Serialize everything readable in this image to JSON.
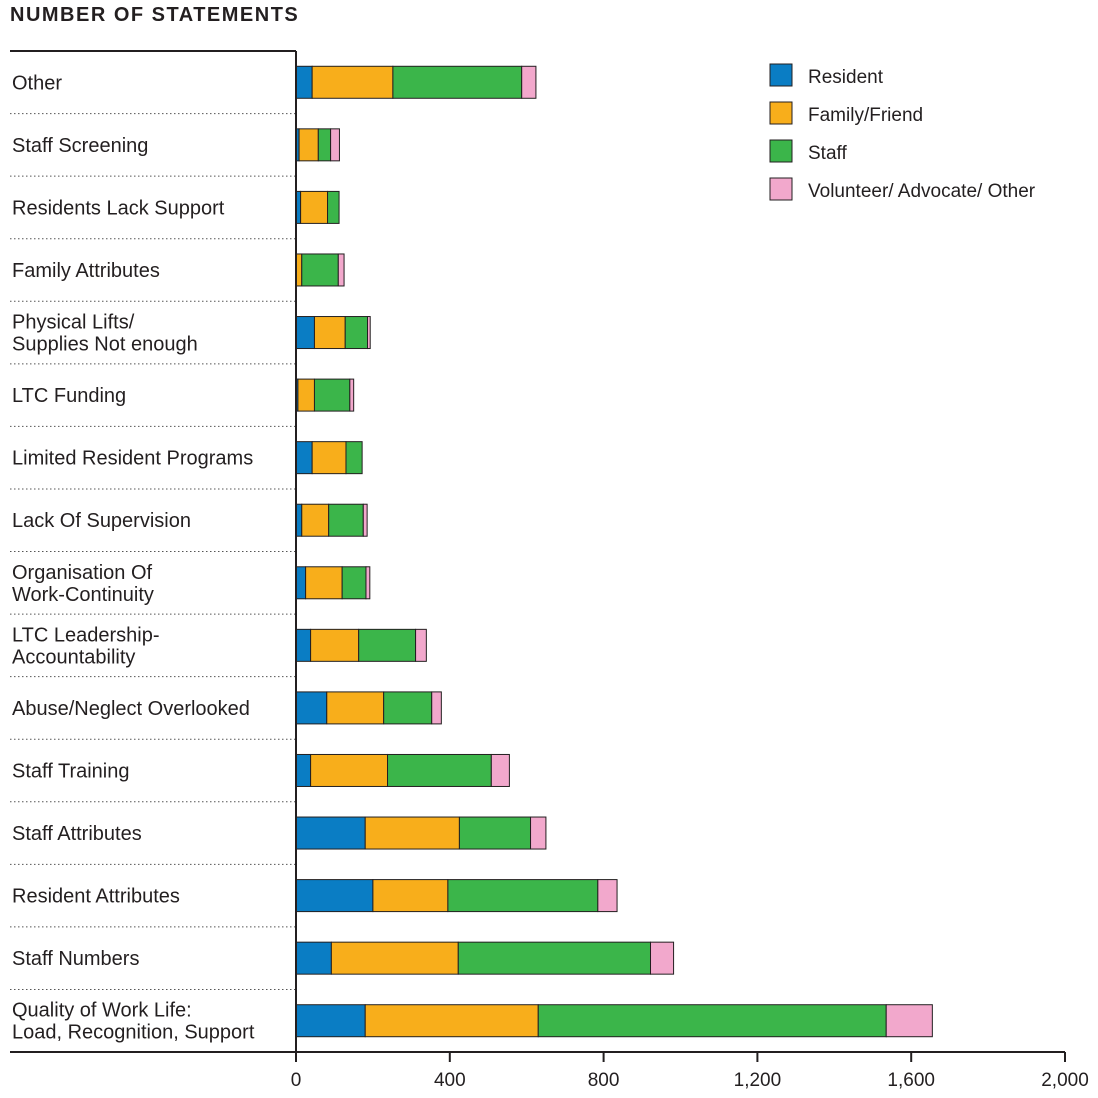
{
  "chart_data": {
    "type": "bar",
    "orientation": "horizontal",
    "stacked": true,
    "title": "NUMBER OF STATEMENTS",
    "categories": [
      [
        "Other"
      ],
      [
        "Staff Screening"
      ],
      [
        "Residents Lack Support"
      ],
      [
        "Family Attributes"
      ],
      [
        "Physical Lifts/",
        "Supplies Not enough"
      ],
      [
        "LTC Funding"
      ],
      [
        "Limited Resident Programs"
      ],
      [
        "Lack Of Supervision"
      ],
      [
        "Organisation Of",
        "Work-Continuity"
      ],
      [
        "LTC Leadership-",
        "Accountability"
      ],
      [
        "Abuse/Neglect Overlooked"
      ],
      [
        "Staff Training"
      ],
      [
        "Staff Attributes"
      ],
      [
        "Resident Attributes"
      ],
      [
        "Staff Numbers"
      ],
      [
        "Quality of Work Life:",
        "Load, Recognition, Support"
      ]
    ],
    "series": [
      {
        "name": "Resident",
        "color": "#0a7dc4",
        "values": [
          42,
          8,
          12,
          0,
          48,
          5,
          42,
          15,
          25,
          38,
          80,
          38,
          180,
          200,
          92,
          180
        ]
      },
      {
        "name": "Family/Friend",
        "color": "#f8ae1b",
        "values": [
          210,
          50,
          70,
          15,
          80,
          43,
          88,
          70,
          95,
          125,
          148,
          200,
          245,
          195,
          330,
          450
        ]
      },
      {
        "name": "Staff",
        "color": "#3bb54a",
        "values": [
          335,
          32,
          30,
          95,
          58,
          92,
          42,
          90,
          62,
          148,
          125,
          270,
          185,
          390,
          500,
          905
        ]
      },
      {
        "name": "Volunteer/ Advocate/ Other",
        "color": "#f2a8cc",
        "values": [
          37,
          23,
          0,
          15,
          7,
          10,
          0,
          10,
          10,
          28,
          25,
          47,
          40,
          50,
          60,
          120
        ]
      }
    ],
    "xlim": [
      0,
      2000
    ],
    "xticks": [
      "0",
      "400",
      "800",
      "1,200",
      "1,600",
      "2,000"
    ],
    "xtick_values": [
      0,
      400,
      800,
      1200,
      1600,
      2000
    ],
    "legend_position": "top-right",
    "grid": false
  }
}
